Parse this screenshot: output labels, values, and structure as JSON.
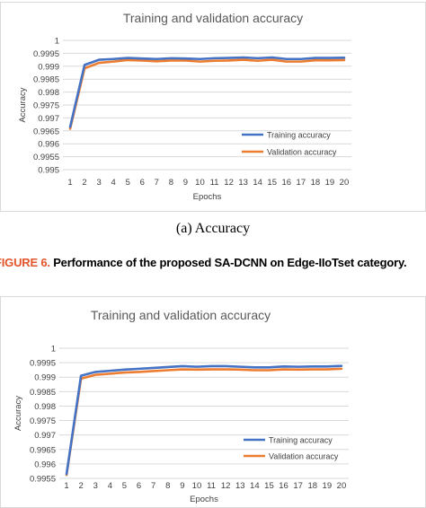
{
  "figure": {
    "subcaption": "(a) Accuracy",
    "caption_label": "FIGURE 6.",
    "caption_text": "Performance of the proposed SA-DCNN on Edge-IIoTset category."
  },
  "colors": {
    "training": "#4472c4",
    "validation": "#ed7d31",
    "grid": "#d9d9d9",
    "caption_label": "#e2542a"
  },
  "chart_data": [
    {
      "type": "line",
      "title": "Training and validation accuracy",
      "xlabel": "Epochs",
      "ylabel": "Accuracy",
      "x": [
        1,
        2,
        3,
        4,
        5,
        6,
        7,
        8,
        9,
        10,
        11,
        12,
        13,
        14,
        15,
        16,
        17,
        18,
        19,
        20
      ],
      "ylim": [
        0.995,
        1
      ],
      "yticks": [
        "0.995",
        "0.9955",
        "0.996",
        "0.9965",
        "0.997",
        "0.9975",
        "0.998",
        "0.9985",
        "0.999",
        "0.9995",
        "1"
      ],
      "grid": true,
      "legend_position": "bottom-right",
      "series": [
        {
          "name": "Training accuracy",
          "values": [
            0.99665,
            0.99905,
            0.99925,
            0.99928,
            0.99932,
            0.9993,
            0.99928,
            0.99931,
            0.9993,
            0.99928,
            0.99931,
            0.99932,
            0.99934,
            0.99931,
            0.99934,
            0.99928,
            0.99928,
            0.99932,
            0.99932,
            0.99933
          ]
        },
        {
          "name": "Validation accuracy",
          "values": [
            0.99658,
            0.99892,
            0.99913,
            0.99918,
            0.99924,
            0.99922,
            0.99919,
            0.99922,
            0.99922,
            0.99918,
            0.99921,
            0.99922,
            0.99925,
            0.99921,
            0.99925,
            0.99918,
            0.99918,
            0.99923,
            0.99923,
            0.99924
          ]
        }
      ]
    },
    {
      "type": "line",
      "title": "Training and validation accuracy",
      "xlabel": "Epochs",
      "ylabel": "Accuracy",
      "x": [
        1,
        2,
        3,
        4,
        5,
        6,
        7,
        8,
        9,
        10,
        11,
        12,
        13,
        14,
        15,
        16,
        17,
        18,
        19,
        20
      ],
      "ylim": [
        0.9955,
        1
      ],
      "yticks": [
        "0.9955",
        "0.996",
        "0.9965",
        "0.997",
        "0.9975",
        "0.998",
        "0.9985",
        "0.999",
        "0.9995",
        "1"
      ],
      "grid": true,
      "legend_position": "bottom-right",
      "series": [
        {
          "name": "Training accuracy",
          "values": [
            0.99565,
            0.99905,
            0.99918,
            0.99922,
            0.99926,
            0.99929,
            0.99932,
            0.99935,
            0.99938,
            0.99936,
            0.99938,
            0.99938,
            0.99936,
            0.99934,
            0.99934,
            0.99937,
            0.99936,
            0.99937,
            0.99937,
            0.99939
          ]
        },
        {
          "name": "Validation accuracy",
          "values": [
            0.99562,
            0.99895,
            0.99908,
            0.99912,
            0.99916,
            0.99918,
            0.99921,
            0.99924,
            0.99927,
            0.99926,
            0.99927,
            0.99927,
            0.99926,
            0.99924,
            0.99924,
            0.99927,
            0.99926,
            0.99927,
            0.99927,
            0.99929
          ]
        }
      ]
    }
  ]
}
